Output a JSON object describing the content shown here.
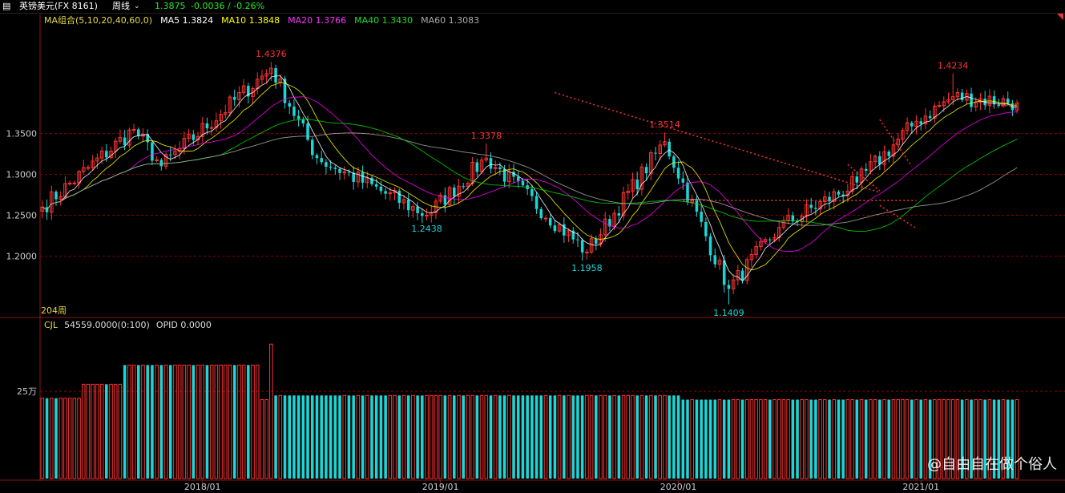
{
  "title_bar": {
    "menu_icon": "menu-icon",
    "instrument": "英镑美元(FX 8161)",
    "period": "周线",
    "dropdown_icon": "chevron-down-icon",
    "last_price": "1.3875",
    "change": "-0.0036 / -0.26%"
  },
  "ma_legend": {
    "group": "MA组合(5,10,20,40,60,0)",
    "ma5": "MA5 1.3824",
    "ma10": "MA10 1.3848",
    "ma20": "MA20 1.3766",
    "ma40": "MA40 1.3430",
    "ma60": "MA60 1.3083"
  },
  "volume_legend": {
    "indicator": "CJL",
    "value": "54559.0000(0:100)",
    "opid": "OPID 0.0000"
  },
  "bar_count_label": "204周",
  "watermark": "@自由自在做个俗人",
  "colors": {
    "up": "#ff3232",
    "down": "#1bd6d6",
    "ma5": "#ffffff",
    "ma10": "#ffff00",
    "ma20": "#ff00ff",
    "ma40": "#00dd00",
    "ma60": "#aaaaaa",
    "grid": "#8b0000",
    "price_text": "#22ee22",
    "trend_line": "#ff3030"
  },
  "chart_data": [
    {
      "type": "candlestick",
      "title": "英镑美元(FX 8161) 周线",
      "x_ticks": [
        "2018/01",
        "2019/01",
        "2020/01",
        "2021/01"
      ],
      "y_ticks": [
        "1.3500",
        "1.3000",
        "1.2500",
        "1.2000"
      ],
      "ylim": [
        1.125,
        1.48
      ],
      "annotations": [
        {
          "label": "1.4376",
          "date": "2018-04-16",
          "value": 1.4376,
          "kind": "high"
        },
        {
          "label": "1.2438",
          "date": "2018-12-10",
          "value": 1.2438,
          "kind": "low"
        },
        {
          "label": "1.3378",
          "date": "2019-03-11",
          "value": 1.3378,
          "kind": "high"
        },
        {
          "label": "1.1958",
          "date": "2019-08-12",
          "value": 1.1958,
          "kind": "low"
        },
        {
          "label": "1.3514",
          "date": "2019-12-09",
          "value": 1.3514,
          "kind": "high"
        },
        {
          "label": "1.1409",
          "date": "2020-03-16",
          "value": 1.1409,
          "kind": "low"
        },
        {
          "label": "1.4234",
          "date": "2021-02-22",
          "value": 1.4234,
          "kind": "high"
        }
      ],
      "key_points": [
        {
          "date": "2017-05-01",
          "close": 1.26
        },
        {
          "date": "2017-09-18",
          "close": 1.355
        },
        {
          "date": "2017-10-30",
          "close": 1.31
        },
        {
          "date": "2018-04-16",
          "close": 1.43
        },
        {
          "date": "2018-06-25",
          "close": 1.32
        },
        {
          "date": "2018-12-10",
          "close": 1.25
        },
        {
          "date": "2019-03-11",
          "close": 1.32
        },
        {
          "date": "2019-08-12",
          "close": 1.205
        },
        {
          "date": "2019-12-09",
          "close": 1.34
        },
        {
          "date": "2020-03-16",
          "close": 1.16
        },
        {
          "date": "2020-06-01",
          "close": 1.235
        },
        {
          "date": "2020-09-28",
          "close": 1.29
        },
        {
          "date": "2020-12-28",
          "close": 1.365
        },
        {
          "date": "2021-02-22",
          "close": 1.395
        },
        {
          "date": "2021-05-31",
          "close": 1.3875
        }
      ],
      "series": [
        {
          "name": "MA5",
          "value": 1.3824
        },
        {
          "name": "MA10",
          "value": 1.3848
        },
        {
          "name": "MA20",
          "value": 1.3766
        },
        {
          "name": "MA40",
          "value": 1.343
        },
        {
          "name": "MA60",
          "value": 1.3083
        }
      ]
    },
    {
      "type": "bar",
      "title": "CJL",
      "y_ticks": [
        "25万"
      ],
      "volume_levels": [
        {
          "from": "2017-05-01",
          "to": "2017-06-26",
          "value": 230000
        },
        {
          "from": "2017-07-03",
          "to": "2017-08-28",
          "value": 270000
        },
        {
          "from": "2017-09-04",
          "to": "2018-03-26",
          "value": 325000
        },
        {
          "from": "2018-04-16",
          "to": "2018-04-16",
          "value": 385000
        },
        {
          "from": "2018-04-23",
          "to": "2019-12-30",
          "value": 238000
        },
        {
          "from": "2020-01-06",
          "to": "2021-05-31",
          "value": 226000
        }
      ]
    }
  ]
}
